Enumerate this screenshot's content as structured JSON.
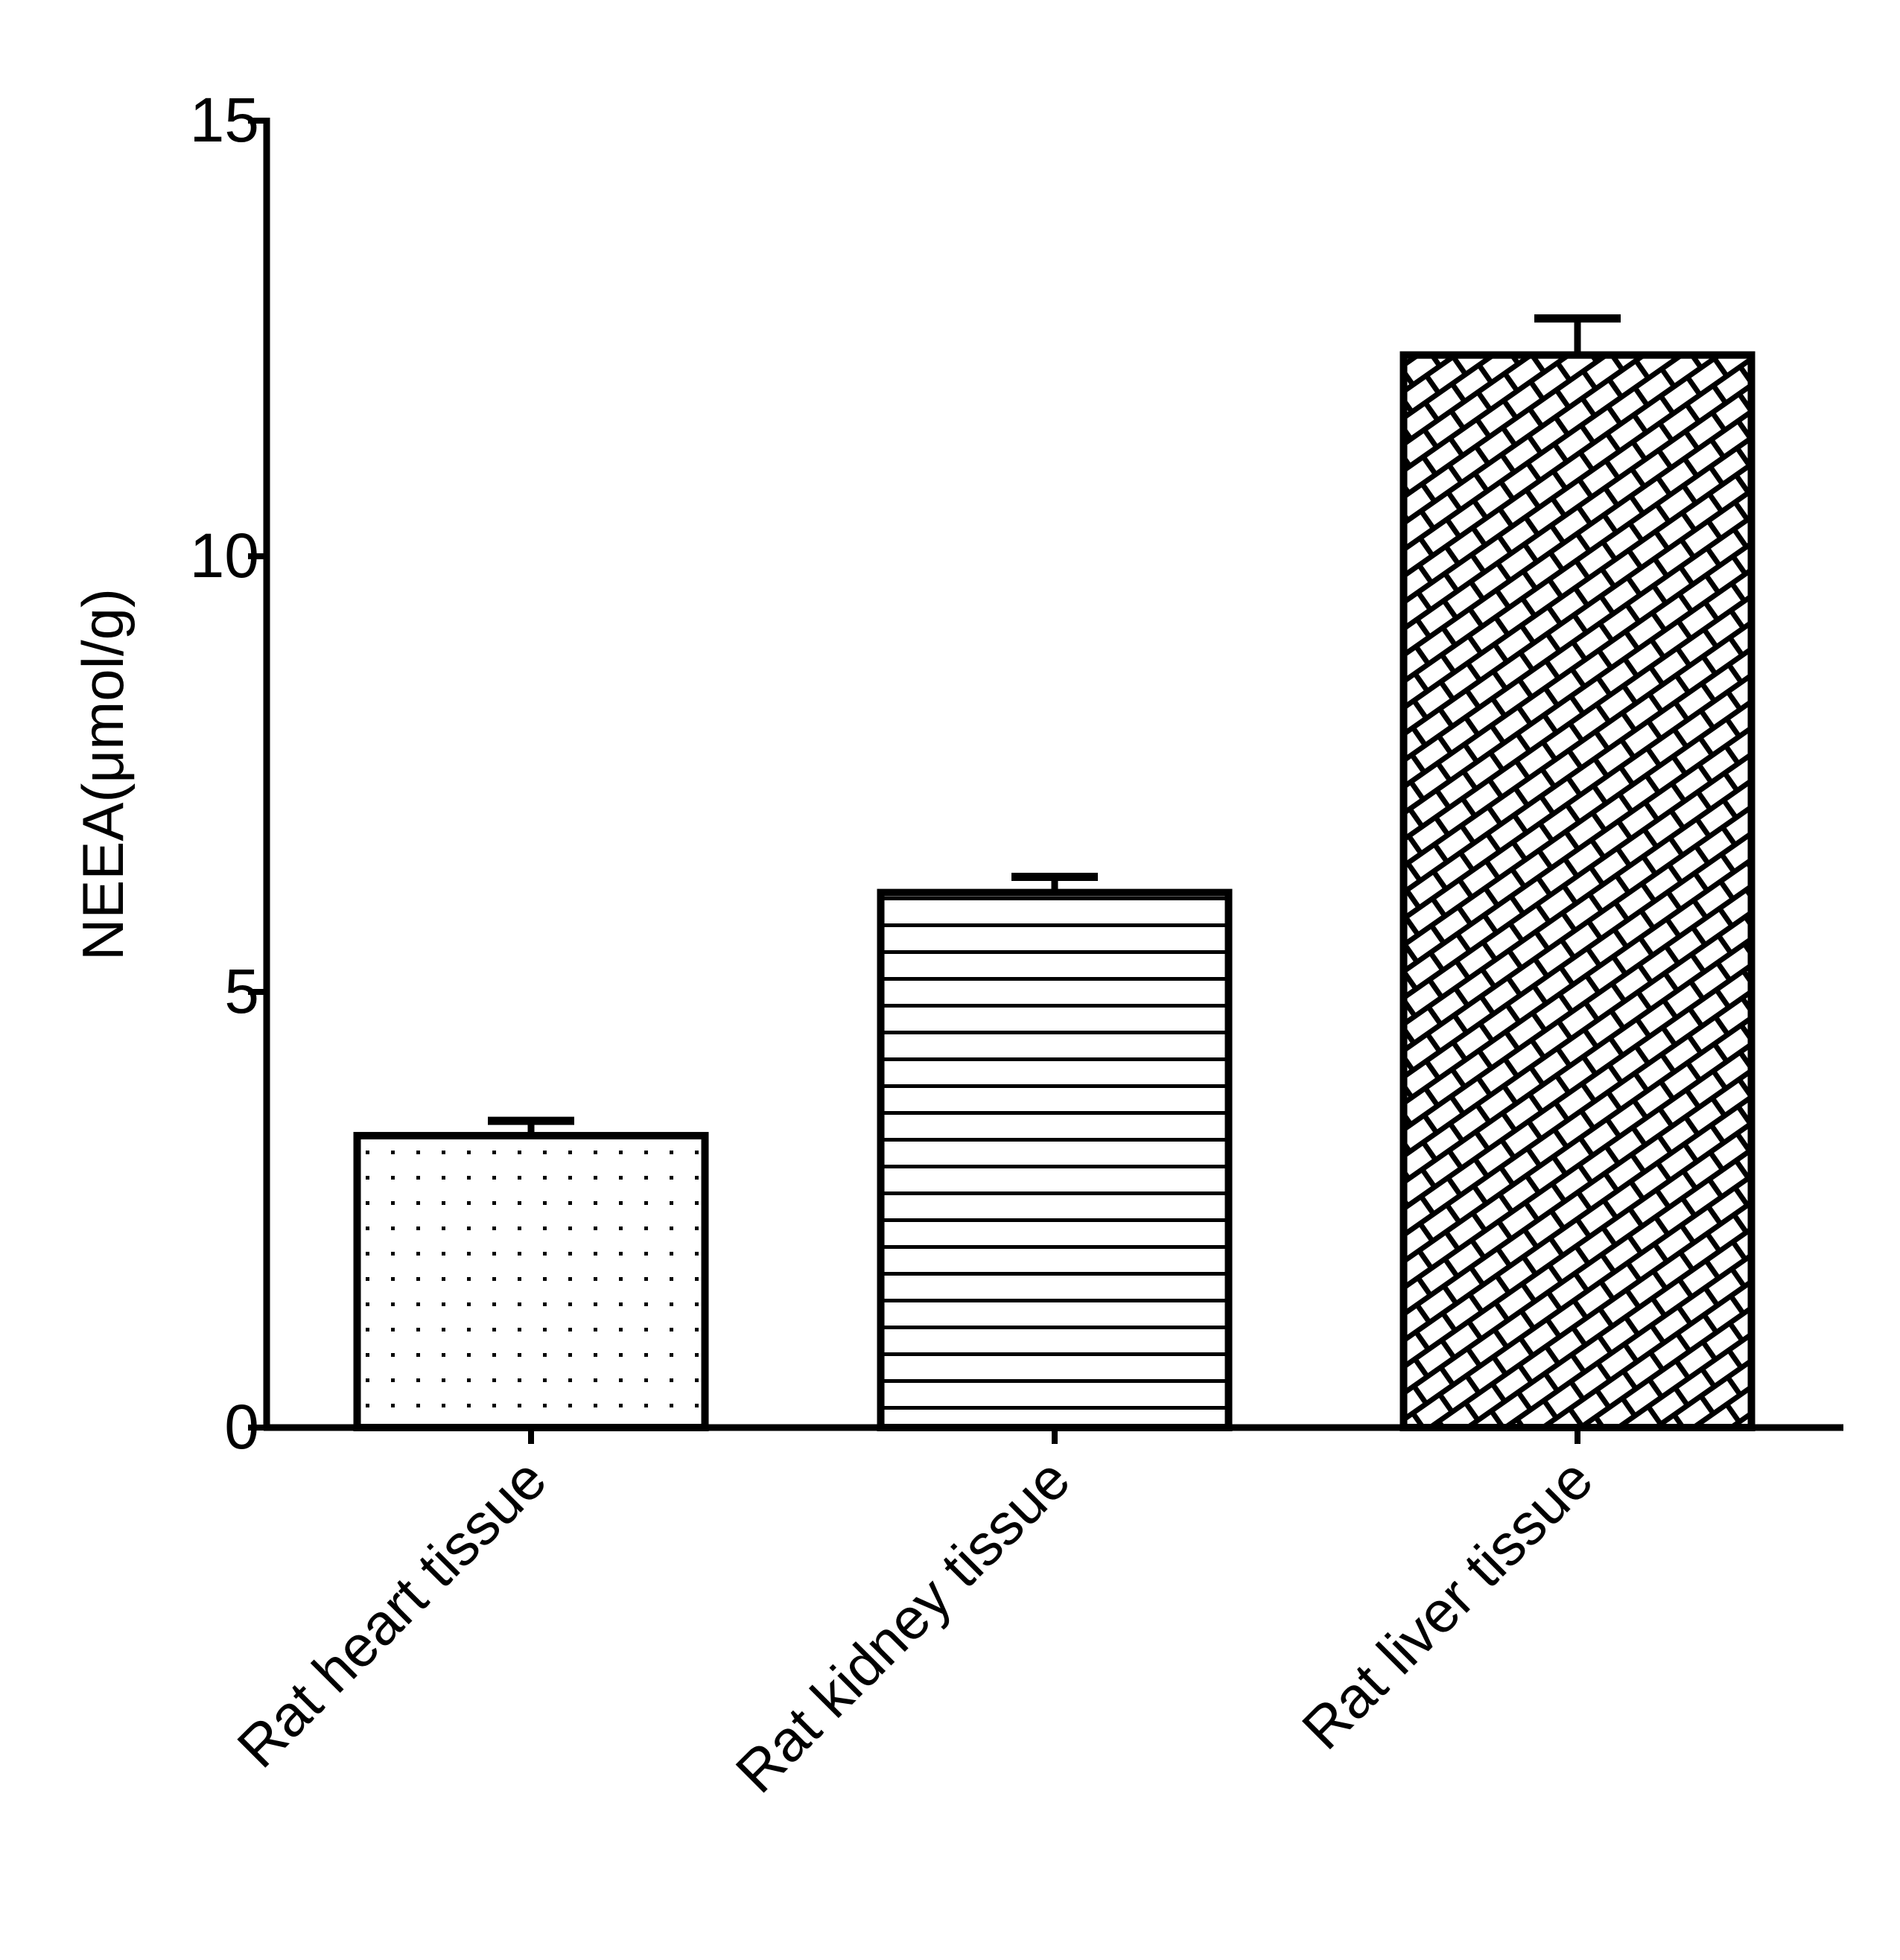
{
  "chart_data": {
    "type": "bar",
    "title": "",
    "xlabel": "",
    "ylabel": "NEEA(μmol/g)",
    "ylim": [
      0,
      15
    ],
    "yticks": [
      "0",
      "5",
      "10",
      "15"
    ],
    "categories": [
      "Rat heart tissue",
      "Rat kidney tissue",
      "Rat liver tissue"
    ],
    "values": [
      3.35,
      6.14,
      12.31
    ],
    "error_upper": [
      0.17,
      0.18,
      0.42
    ],
    "fill_patterns": [
      "dots",
      "horizontal-lines",
      "crosshatch-bricks"
    ],
    "bar_color": "#ffffff",
    "line_color": "#000000",
    "grid": false
  }
}
